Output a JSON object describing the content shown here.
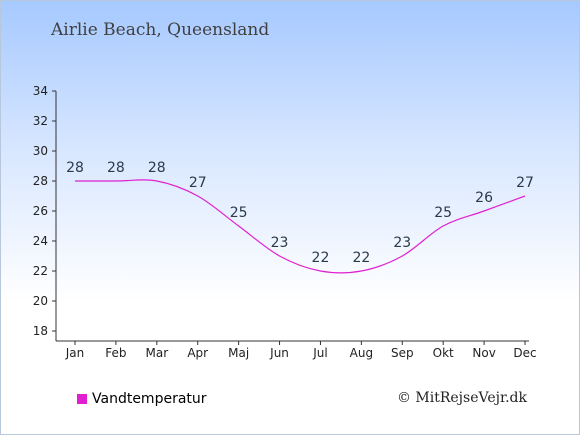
{
  "chart_data": {
    "type": "line",
    "title": "Airlie Beach, Queensland",
    "categories": [
      "Jan",
      "Feb",
      "Mar",
      "Apr",
      "Maj",
      "Jun",
      "Jul",
      "Aug",
      "Sep",
      "Okt",
      "Nov",
      "Dec"
    ],
    "series": [
      {
        "name": "Vandtemperatur",
        "values": [
          28,
          28,
          28,
          27,
          25,
          23,
          22,
          22,
          23,
          25,
          26,
          27
        ],
        "color": "#e020d0"
      }
    ],
    "ylim": [
      18,
      34
    ],
    "yticks": [
      18,
      20,
      22,
      24,
      26,
      28,
      30,
      32,
      34
    ],
    "grid": false,
    "legend": "bottom-left"
  },
  "copyright": "© MitRejseVejr.dk",
  "colors": {
    "axis": "#333333",
    "label_text": "#2a3a4a",
    "line": "#e020d0"
  }
}
